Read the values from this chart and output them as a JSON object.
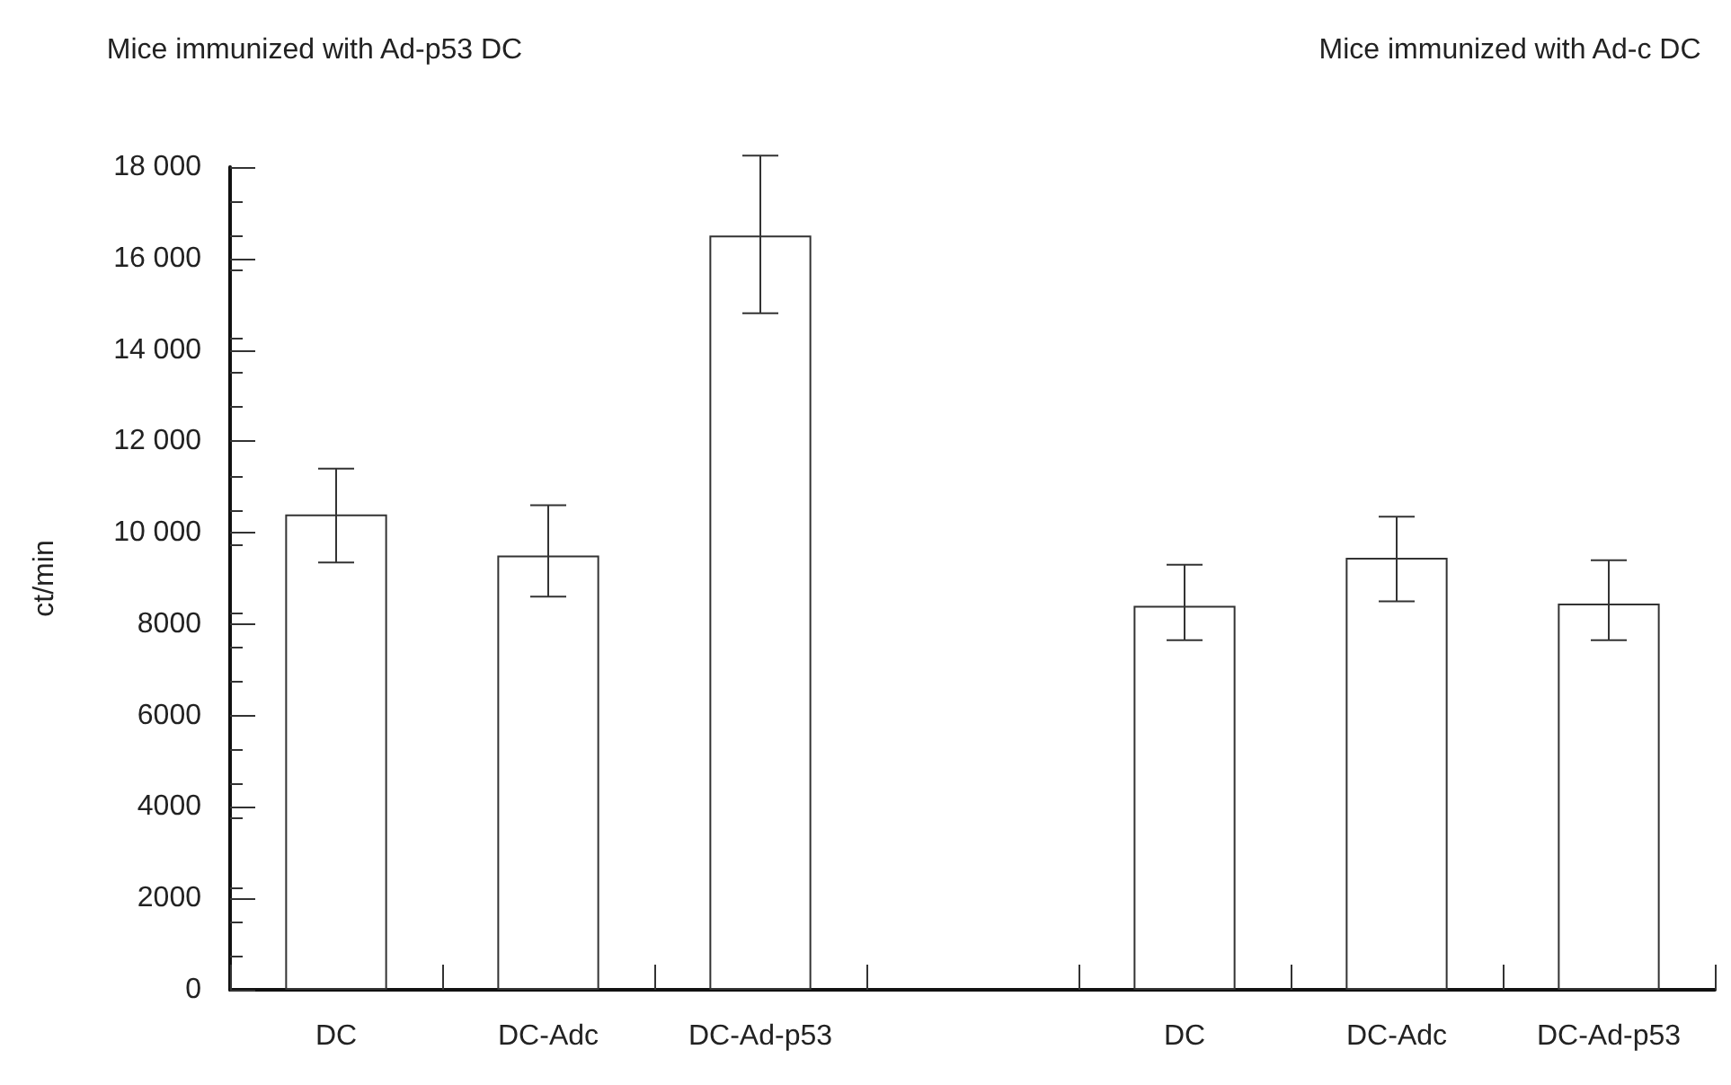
{
  "chart_data": {
    "type": "bar",
    "ylabel": "ct/min",
    "annotations": [
      "Mice immunized with Ad-p53 DC",
      "Mice immunized with Ad-c DC"
    ],
    "categories": [
      "DC",
      "DC-Adc",
      "DC-Ad-p53",
      null,
      "DC",
      "DC-Adc",
      "DC-Ad-p53"
    ],
    "series": [
      {
        "color": "#ffffff",
        "values": [
          10400,
          9500,
          16500,
          null,
          8400,
          9450,
          8450
        ],
        "errors": [
          [
            9350,
            11400
          ],
          [
            8600,
            10600
          ],
          [
            14800,
            18250
          ],
          null,
          [
            7650,
            9300
          ],
          [
            8500,
            10350
          ],
          [
            7650,
            9400
          ]
        ]
      }
    ],
    "ylim": [
      0,
      18000
    ],
    "yticks": [
      0,
      2000,
      4000,
      6000,
      8000,
      {
        "value": 10000,
        "label": "10 000"
      },
      {
        "value": 12000,
        "label": "12 000"
      },
      {
        "value": 14000,
        "label": "14 000"
      },
      {
        "value": 16000,
        "label": "16 000"
      },
      {
        "value": 18000,
        "label": "18 000"
      }
    ],
    "grid": false
  }
}
